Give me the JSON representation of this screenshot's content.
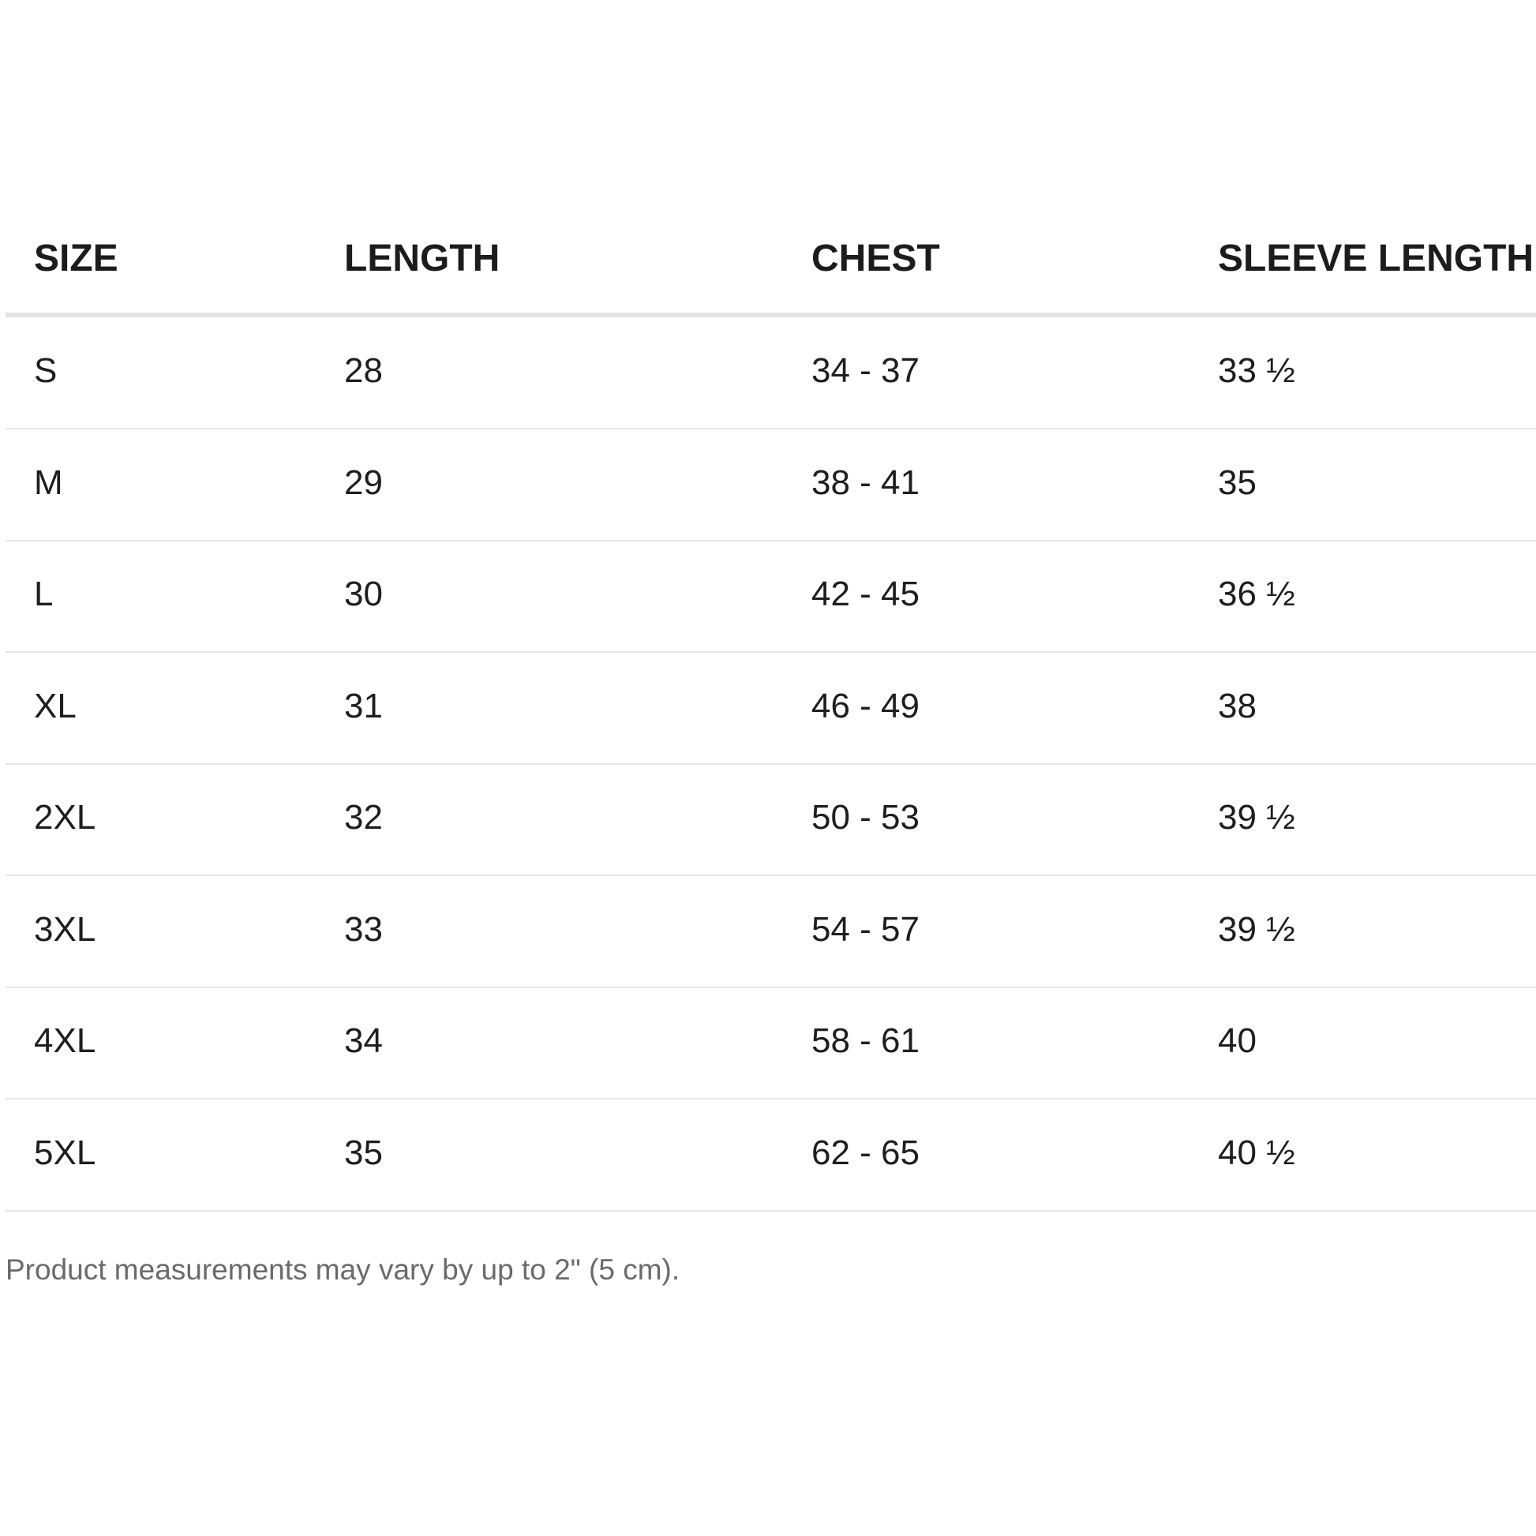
{
  "table": {
    "headers": [
      "SIZE",
      "LENGTH",
      "CHEST",
      "SLEEVE LENGTH"
    ],
    "rows": [
      [
        "S",
        "28",
        "34 - 37",
        "33 ½"
      ],
      [
        "M",
        "29",
        "38 - 41",
        "35"
      ],
      [
        "L",
        "30",
        "42 - 45",
        "36 ½"
      ],
      [
        "XL",
        "31",
        "46 - 49",
        "38"
      ],
      [
        "2XL",
        "32",
        "50 - 53",
        "39 ½"
      ],
      [
        "3XL",
        "33",
        "54 - 57",
        "39 ½"
      ],
      [
        "4XL",
        "34",
        "58 - 61",
        "40"
      ],
      [
        "5XL",
        "35",
        "62 - 65",
        "40 ½"
      ]
    ]
  },
  "note": "Product measurements may vary by up to 2\" (5 cm)."
}
